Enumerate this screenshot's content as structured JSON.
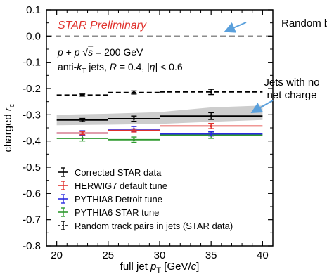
{
  "chart_data": {
    "type": "line",
    "xlabel_parts": [
      "full jet ",
      "p",
      "T",
      " [GeV/",
      "c",
      "]"
    ],
    "ylabel_parts": [
      "charged ",
      "r",
      "c"
    ],
    "xlim": [
      19,
      41
    ],
    "ylim": [
      -0.8,
      0.1
    ],
    "xticks": [
      20,
      25,
      30,
      35,
      40
    ],
    "yticks": [
      0.1,
      0.0,
      -0.1,
      -0.2,
      -0.3,
      -0.4,
      -0.5,
      -0.6,
      -0.7,
      -0.8
    ],
    "ytick_labels": [
      "0.1",
      "0.0",
      "-0.1",
      "-0.2",
      "-0.3",
      "-0.4",
      "-0.5",
      "-0.6",
      "-0.7",
      "-0.8"
    ],
    "bin_edges": [
      20,
      25,
      30,
      40
    ],
    "bin_centers": [
      22.5,
      27.5,
      35
    ],
    "grid": false,
    "legend_position": "bottom-left",
    "series": [
      {
        "name": "Corrected STAR data",
        "color": "#000000",
        "style": "solid",
        "values": [
          -0.32,
          -0.315,
          -0.305
        ],
        "errors": [
          0.006,
          0.01,
          0.013
        ],
        "systematic_band": {
          "x": [
            20,
            25,
            30,
            35,
            40
          ],
          "low": [
            -0.34,
            -0.338,
            -0.335,
            -0.327,
            -0.32
          ],
          "high": [
            -0.3,
            -0.296,
            -0.29,
            -0.272,
            -0.265
          ],
          "color": "#c8c8c8"
        }
      },
      {
        "name": "HERWIG7 default tune",
        "color": "#e0322d",
        "style": "solid",
        "values": [
          -0.37,
          -0.36,
          -0.343
        ],
        "errors": [
          0.006,
          0.006,
          0.01
        ]
      },
      {
        "name": "PYTHIA8 Detroit tune",
        "color": "#2a2ae0",
        "style": "solid",
        "values": [
          -0.37,
          -0.355,
          -0.373
        ],
        "errors": [
          0.009,
          0.01,
          0.008
        ]
      },
      {
        "name": "PYTHIA6 STAR tune",
        "color": "#2f9a2f",
        "style": "solid",
        "values": [
          -0.39,
          -0.395,
          -0.378
        ],
        "errors": [
          0.01,
          0.01,
          0.012
        ]
      },
      {
        "name": "Random track pairs in jets (STAR data)",
        "color": "#000000",
        "style": "dashed",
        "values": [
          -0.225,
          -0.215,
          -0.213
        ],
        "errors": [
          0.004,
          0.006,
          0.01
        ]
      }
    ],
    "reference_line": {
      "y": 0.0,
      "color": "#8c8c8c",
      "style": "dashed"
    },
    "annotations": {
      "preliminary": "STAR Preliminary",
      "preliminary_color": "#e0322d",
      "system_parts": [
        "p",
        " + ",
        "p",
        "   ",
        "√",
        "s",
        " = 200 GeV"
      ],
      "algo_parts": [
        "anti-",
        "k",
        "T",
        " jets, ",
        "R",
        " = 0.4, |",
        "η",
        "| < 0.6"
      ],
      "callout_random_bath": "Random bath",
      "callout_no_charge": [
        "Jets with no",
        "net charge"
      ],
      "callout_arrow_color": "#5aa0dc"
    }
  }
}
